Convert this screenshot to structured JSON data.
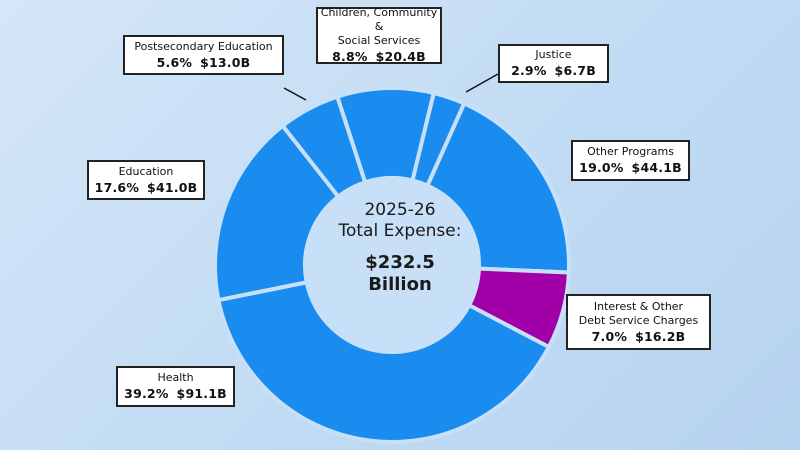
{
  "colors": {
    "segment_blue": "#1a8cf0",
    "highlight_purple": "#a100a8",
    "hole_fill": "#c7e0f7",
    "separator": "#c7e0f7",
    "leader_line": "#111111"
  },
  "center": {
    "line1": "2025-26",
    "line2": "Total Expense:",
    "amount": "$232.5",
    "unit": "Billion"
  },
  "chart_data": {
    "type": "pie",
    "title": "2025-26 Total Expense: $232.5 Billion",
    "slices": [
      {
        "label": "Children, Community & Social Services",
        "percent": 8.8,
        "value": 20.4,
        "display_percent": "8.8%",
        "display_value": "$20.4B",
        "color": "#1a8cf0"
      },
      {
        "label": "Justice",
        "percent": 2.9,
        "value": 6.7,
        "display_percent": "2.9%",
        "display_value": "$6.7B",
        "color": "#1a8cf0"
      },
      {
        "label": "Other Programs",
        "percent": 19.0,
        "value": 44.1,
        "display_percent": "19.0%",
        "display_value": "$44.1B",
        "color": "#1a8cf0"
      },
      {
        "label": "Interest & Other Debt Service Charges",
        "percent": 7.0,
        "value": 16.2,
        "display_percent": "7.0%",
        "display_value": "$16.2B",
        "color": "#a100a8"
      },
      {
        "label": "Health",
        "percent": 39.2,
        "value": 91.1,
        "display_percent": "39.2%",
        "display_value": "$91.1B",
        "color": "#1a8cf0"
      },
      {
        "label": "Education",
        "percent": 17.6,
        "value": 41.0,
        "display_percent": "17.6%",
        "display_value": "$41.0B",
        "color": "#1a8cf0"
      },
      {
        "label": "Postsecondary Education",
        "percent": 5.6,
        "value": 13.0,
        "display_percent": "5.6%",
        "display_value": "$13.0B",
        "color": "#1a8cf0"
      }
    ]
  },
  "labels": {
    "children": {
      "name": "Children, Community &\nSocial Services",
      "percent": "8.8%",
      "value": "$20.4B"
    },
    "justice": {
      "name": "Justice",
      "percent": "2.9%",
      "value": "$6.7B"
    },
    "other": {
      "name": "Other Programs",
      "percent": "19.0%",
      "value": "$44.1B"
    },
    "interest": {
      "name": "Interest & Other\nDebt Service Charges",
      "percent": "7.0%",
      "value": "$16.2B"
    },
    "health": {
      "name": "Health",
      "percent": "39.2%",
      "value": "$91.1B"
    },
    "education": {
      "name": "Education",
      "percent": "17.6%",
      "value": "$41.0B"
    },
    "postsec": {
      "name": "Postsecondary Education",
      "percent": "5.6%",
      "value": "$13.0B"
    }
  }
}
